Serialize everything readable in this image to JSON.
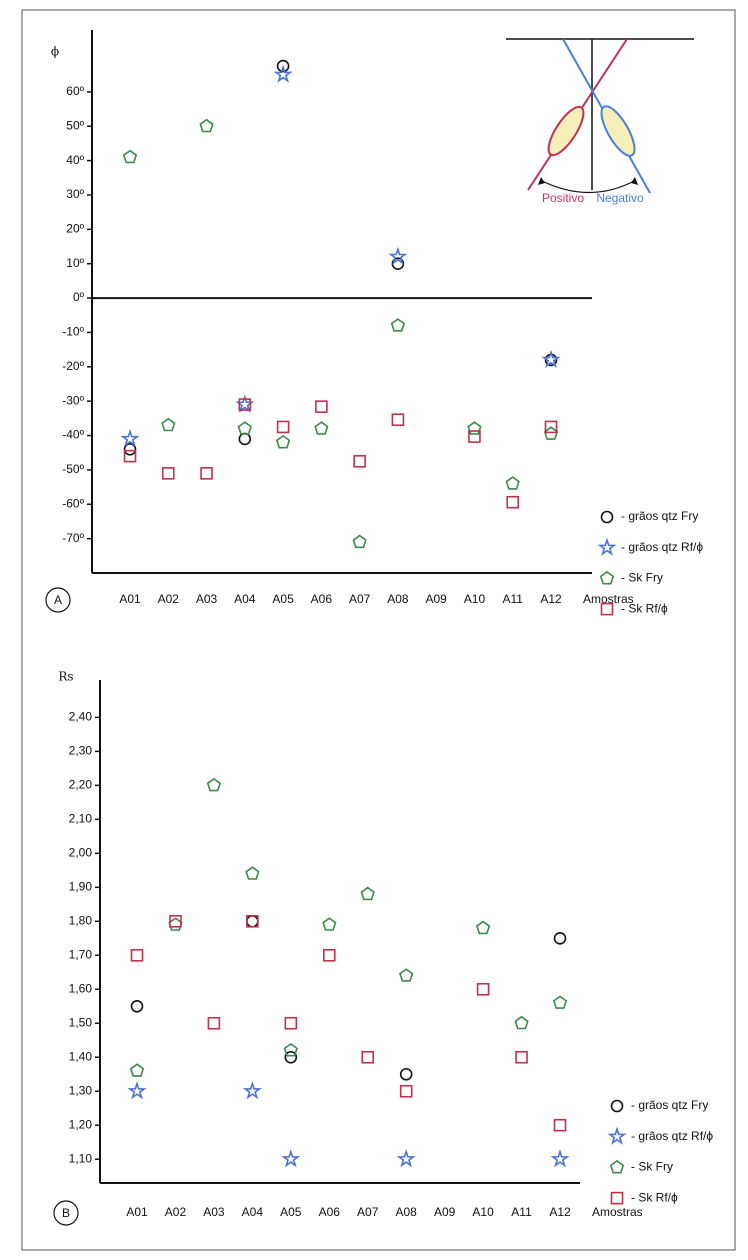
{
  "chart_data": [
    {
      "type": "scatter",
      "panel": "A",
      "y_label": "ϕ",
      "x_label": "Amostras",
      "zero_line": true,
      "annotations": [
        "Positivo",
        "Negativo"
      ],
      "categories": [
        "A01",
        "A02",
        "A03",
        "A04",
        "A05",
        "A06",
        "A07",
        "A08",
        "A09",
        "A10",
        "A11",
        "A12"
      ],
      "ylim": [
        -80,
        78
      ],
      "yticks": [
        {
          "value": 60,
          "label": "60º"
        },
        {
          "value": 50,
          "label": "50º"
        },
        {
          "value": 40,
          "label": "40º"
        },
        {
          "value": 30,
          "label": "30º"
        },
        {
          "value": 20,
          "label": "20º"
        },
        {
          "value": 10,
          "label": "10º"
        },
        {
          "value": 0,
          "label": "0º"
        },
        {
          "value": -10,
          "label": "-10º"
        },
        {
          "value": -20,
          "label": "-20º"
        },
        {
          "value": -30,
          "label": "-30º"
        },
        {
          "value": -40,
          "label": "-40º"
        },
        {
          "value": -50,
          "label": "-50º"
        },
        {
          "value": -60,
          "label": "-60º"
        },
        {
          "value": -70,
          "label": "-70º"
        }
      ],
      "series": [
        {
          "name": "- grãos qtz Fry",
          "color": "#111111",
          "marker": "circle",
          "values": [
            -44,
            null,
            null,
            -41,
            67.5,
            null,
            null,
            10,
            null,
            null,
            null,
            -18
          ]
        },
        {
          "name": "- grãos qtz Rf/ϕ",
          "color": "#4a72d8",
          "marker": "star",
          "values": [
            -41,
            null,
            null,
            -31,
            65,
            null,
            null,
            12,
            null,
            null,
            null,
            -18
          ]
        },
        {
          "name": "- Sk Fry",
          "color": "#3a8a4a",
          "marker": "pentagon",
          "values": [
            41,
            -37,
            50,
            -38,
            -42,
            -38,
            -71,
            -8,
            null,
            -38,
            -54,
            -39.5
          ]
        },
        {
          "name": "- Sk Rf/ϕ",
          "color": "#c2304a",
          "marker": "square",
          "values": [
            -46,
            -51,
            -51,
            -31,
            -37.5,
            -31.6,
            -47.5,
            -35.4,
            null,
            -40.3,
            -59.4,
            -37.5
          ]
        }
      ]
    },
    {
      "type": "scatter",
      "panel": "B",
      "y_label": "Rs",
      "x_label": "Amostras",
      "zero_line": false,
      "categories": [
        "A01",
        "A02",
        "A03",
        "A04",
        "A05",
        "A06",
        "A07",
        "A08",
        "A09",
        "A10",
        "A11",
        "A12"
      ],
      "ylim": [
        1.03,
        2.51
      ],
      "yticks": [
        {
          "value": 2.4,
          "label": "2,40"
        },
        {
          "value": 2.3,
          "label": "2,30"
        },
        {
          "value": 2.2,
          "label": "2,20"
        },
        {
          "value": 2.1,
          "label": "2,10"
        },
        {
          "value": 2.0,
          "label": "2,00"
        },
        {
          "value": 1.9,
          "label": "1,90"
        },
        {
          "value": 1.8,
          "label": "1,80"
        },
        {
          "value": 1.7,
          "label": "1,70"
        },
        {
          "value": 1.6,
          "label": "1,60"
        },
        {
          "value": 1.5,
          "label": "1,50"
        },
        {
          "value": 1.4,
          "label": "1,40"
        },
        {
          "value": 1.3,
          "label": "1,30"
        },
        {
          "value": 1.2,
          "label": "1,20"
        },
        {
          "value": 1.1,
          "label": "1,10"
        }
      ],
      "series": [
        {
          "name": "- grãos qtz Fry",
          "color": "#111111",
          "marker": "circle",
          "values": [
            1.55,
            null,
            null,
            1.8,
            1.4,
            null,
            null,
            1.35,
            null,
            null,
            null,
            1.75
          ]
        },
        {
          "name": "- grãos qtz Rf/ϕ",
          "color": "#4a72d8",
          "marker": "star",
          "values": [
            1.3,
            null,
            null,
            1.3,
            1.1,
            null,
            null,
            1.1,
            null,
            null,
            null,
            1.1
          ]
        },
        {
          "name": "- Sk Fry",
          "color": "#3a8a4a",
          "marker": "pentagon",
          "values": [
            1.36,
            1.79,
            2.2,
            1.94,
            1.42,
            1.79,
            1.88,
            1.64,
            null,
            1.78,
            1.5,
            1.56
          ]
        },
        {
          "name": "- Sk Rf/ϕ",
          "color": "#c2304a",
          "marker": "square",
          "values": [
            1.7,
            1.8,
            1.5,
            1.8,
            1.5,
            1.7,
            1.4,
            1.3,
            null,
            1.6,
            1.4,
            1.2
          ]
        }
      ]
    }
  ]
}
